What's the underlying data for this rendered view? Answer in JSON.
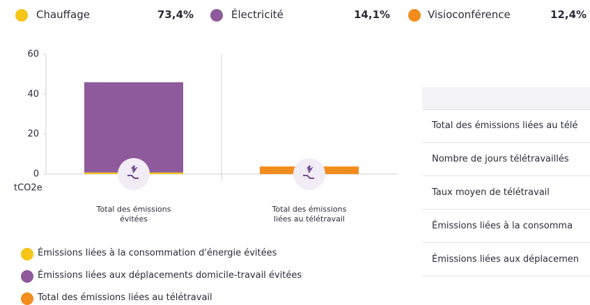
{
  "top_legend": [
    {
      "name": "Chauffage",
      "color": "#f5c518",
      "share": "73,4%"
    },
    {
      "name": "Électricité",
      "color": "#8e5a9c",
      "share": "14,1%"
    },
    {
      "name": "Visioconférence",
      "color": "#f28c1c",
      "share": "12,4%"
    }
  ],
  "chart_data": {
    "type": "stacked_bar",
    "categories": [
      "Total des émissions évitées",
      "Total des émissions liées au télétravail"
    ],
    "y_label": "tCO2e",
    "ylim": [
      0,
      60
    ],
    "yticks": [
      0,
      20,
      40,
      60
    ],
    "series": [
      {
        "name": "Émissions liées à la consommation d'énergie évitées",
        "color": "#f5c518",
        "values": [
          0.8,
          null
        ]
      },
      {
        "name": "Émissions liées aux déplacements domicile-travail évitées",
        "color": "#8e5a9c",
        "values": [
          45.2,
          null
        ]
      },
      {
        "name": "Total des émissions liées au télétravail",
        "color": "#f28c1c",
        "values": [
          null,
          3.8
        ]
      }
    ]
  },
  "table": {
    "rows": [
      "Total des émissions liées au télé",
      "Nombre de jours télétravaillés",
      "Taux moyen de télétravail",
      "Émissions liées à la consomma",
      "Émissions liées aux déplacemen"
    ]
  }
}
